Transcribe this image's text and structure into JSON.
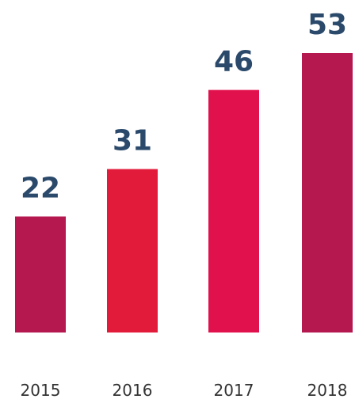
{
  "chart_data": {
    "type": "bar",
    "categories": [
      "2015",
      "2016",
      "2017",
      "2018"
    ],
    "values": [
      22,
      31,
      46,
      53
    ],
    "value_labels": [
      "22",
      "31",
      "46",
      "53"
    ],
    "ylim": [
      0,
      53
    ],
    "grid": false,
    "legend": "none",
    "colors": {
      "bars": [
        "#b5174f",
        "#e31b3b",
        "#e1114d",
        "#b5174f"
      ],
      "value_label": "#2b4a6b",
      "tick_label": "#333333"
    }
  }
}
